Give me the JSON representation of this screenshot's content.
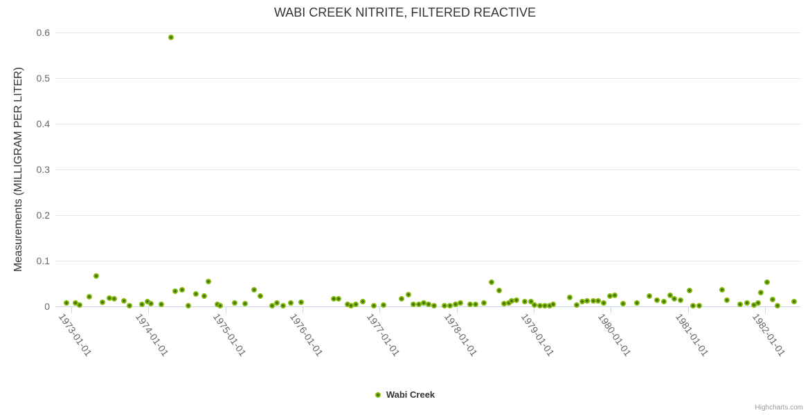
{
  "header": {
    "title": "WABI CREEK NITRITE, FILTERED REACTIVE"
  },
  "legend": {
    "label": "Wabi Creek"
  },
  "credits": {
    "label": "Highcharts.com"
  },
  "axes": {
    "y": {
      "title": "Measurements (MILLIGRAM PER LITER)",
      "ticks": [
        "0",
        "0.1",
        "0.2",
        "0.3",
        "0.4",
        "0.5",
        "0.6"
      ]
    },
    "x": {
      "ticks": [
        "1973-01-01",
        "1974-01-01",
        "1975-01-01",
        "1976-01-01",
        "1977-01-01",
        "1978-01-01",
        "1979-01-01",
        "1980-01-01",
        "1981-01-01",
        "1982-01-01"
      ]
    }
  },
  "colors": {
    "marker_outer": "#85ba10",
    "marker_core": "#47750a",
    "grid": "#e6e6e6",
    "axis_line": "#ccd6eb",
    "title_text": "#333333",
    "tick_text": "#666666",
    "credits_text": "#999999"
  },
  "chart_data": {
    "type": "scatter",
    "title": "WABI CREEK NITRITE, FILTERED REACTIVE",
    "xlabel": "",
    "ylabel": "Measurements (MILLIGRAM PER LITER)",
    "ylim": [
      0,
      0.6
    ],
    "y_tick_interval": 0.1,
    "x_range": [
      "1972-10-01",
      "1982-06-20"
    ],
    "x_tick_dates": [
      "1973-01-01",
      "1974-01-01",
      "1975-01-01",
      "1976-01-01",
      "1977-01-01",
      "1978-01-01",
      "1979-01-01",
      "1980-01-01",
      "1981-01-01",
      "1982-01-01"
    ],
    "grid": "horizontal-only",
    "legend_position": "bottom-center",
    "series": [
      {
        "name": "Wabi Creek",
        "color": "#85ba10",
        "data": [
          [
            "1972-12-08",
            0.008
          ],
          [
            "1973-01-22",
            0.008
          ],
          [
            "1973-02-11",
            0.003
          ],
          [
            "1973-03-27",
            0.021
          ],
          [
            "1973-04-28",
            0.066
          ],
          [
            "1973-05-30",
            0.009
          ],
          [
            "1973-07-02",
            0.018
          ],
          [
            "1973-07-25",
            0.016
          ],
          [
            "1973-09-07",
            0.012
          ],
          [
            "1973-10-04",
            0.001
          ],
          [
            "1973-11-30",
            0.004
          ],
          [
            "1973-12-28",
            0.01
          ],
          [
            "1974-01-13",
            0.006
          ],
          [
            "1974-03-03",
            0.005
          ],
          [
            "1974-04-18",
            0.59
          ],
          [
            "1974-05-07",
            0.033
          ],
          [
            "1974-06-11",
            0.037
          ],
          [
            "1974-07-09",
            0.001
          ],
          [
            "1974-08-16",
            0.028
          ],
          [
            "1974-09-22",
            0.022
          ],
          [
            "1974-10-12",
            0.054
          ],
          [
            "1974-11-24",
            0.005
          ],
          [
            "1974-12-09",
            0.002
          ],
          [
            "1975-02-15",
            0.007
          ],
          [
            "1975-04-03",
            0.006
          ],
          [
            "1975-05-18",
            0.036
          ],
          [
            "1975-06-17",
            0.023
          ],
          [
            "1975-08-10",
            0.002
          ],
          [
            "1975-09-01",
            0.008
          ],
          [
            "1975-10-01",
            0.002
          ],
          [
            "1975-11-08",
            0.007
          ],
          [
            "1975-12-27",
            0.009
          ],
          [
            "1976-05-27",
            0.016
          ],
          [
            "1976-06-20",
            0.017
          ],
          [
            "1976-08-01",
            0.004
          ],
          [
            "1976-08-20",
            0.001
          ],
          [
            "1976-09-12",
            0.005
          ],
          [
            "1976-10-12",
            0.011
          ],
          [
            "1976-12-05",
            0.001
          ],
          [
            "1977-01-20",
            0.003
          ],
          [
            "1977-04-15",
            0.017
          ],
          [
            "1977-05-18",
            0.026
          ],
          [
            "1977-06-10",
            0.005
          ],
          [
            "1977-07-05",
            0.004
          ],
          [
            "1977-07-28",
            0.007
          ],
          [
            "1977-08-20",
            0.004
          ],
          [
            "1977-09-15",
            0.001
          ],
          [
            "1977-11-05",
            0.001
          ],
          [
            "1977-12-01",
            0.002
          ],
          [
            "1977-12-28",
            0.005
          ],
          [
            "1978-01-20",
            0.007
          ],
          [
            "1978-03-05",
            0.005
          ],
          [
            "1978-04-01",
            0.005
          ],
          [
            "1978-05-10",
            0.007
          ],
          [
            "1978-06-15",
            0.053
          ],
          [
            "1978-07-20",
            0.035
          ],
          [
            "1978-08-15",
            0.006
          ],
          [
            "1978-09-05",
            0.008
          ],
          [
            "1978-09-20",
            0.012
          ],
          [
            "1978-10-10",
            0.013
          ],
          [
            "1978-11-20",
            0.011
          ],
          [
            "1978-12-18",
            0.01
          ],
          [
            "1979-01-05",
            0.003
          ],
          [
            "1979-01-30",
            0.001
          ],
          [
            "1979-02-22",
            0.002
          ],
          [
            "1979-03-18",
            0.001
          ],
          [
            "1979-04-05",
            0.005
          ],
          [
            "1979-06-20",
            0.02
          ],
          [
            "1979-07-25",
            0.003
          ],
          [
            "1979-08-20",
            0.01
          ],
          [
            "1979-09-10",
            0.012
          ],
          [
            "1979-10-10",
            0.012
          ],
          [
            "1979-11-03",
            0.012
          ],
          [
            "1979-11-28",
            0.008
          ],
          [
            "1979-12-28",
            0.022
          ],
          [
            "1980-01-20",
            0.025
          ],
          [
            "1980-03-01",
            0.006
          ],
          [
            "1980-05-03",
            0.008
          ],
          [
            "1980-07-01",
            0.023
          ],
          [
            "1980-08-07",
            0.013
          ],
          [
            "1980-09-08",
            0.01
          ],
          [
            "1980-10-08",
            0.024
          ],
          [
            "1980-10-28",
            0.017
          ],
          [
            "1980-11-28",
            0.013
          ],
          [
            "1981-01-08",
            0.035
          ],
          [
            "1981-01-25",
            0.001
          ],
          [
            "1981-02-25",
            0.001
          ],
          [
            "1981-06-12",
            0.037
          ],
          [
            "1981-07-05",
            0.013
          ],
          [
            "1981-09-05",
            0.005
          ],
          [
            "1981-10-08",
            0.008
          ],
          [
            "1981-11-10",
            0.003
          ],
          [
            "1981-11-28",
            0.008
          ],
          [
            "1981-12-13",
            0.03
          ],
          [
            "1982-01-12",
            0.053
          ],
          [
            "1982-02-05",
            0.015
          ],
          [
            "1982-03-03",
            0.002
          ],
          [
            "1982-05-20",
            0.01
          ]
        ]
      }
    ]
  }
}
